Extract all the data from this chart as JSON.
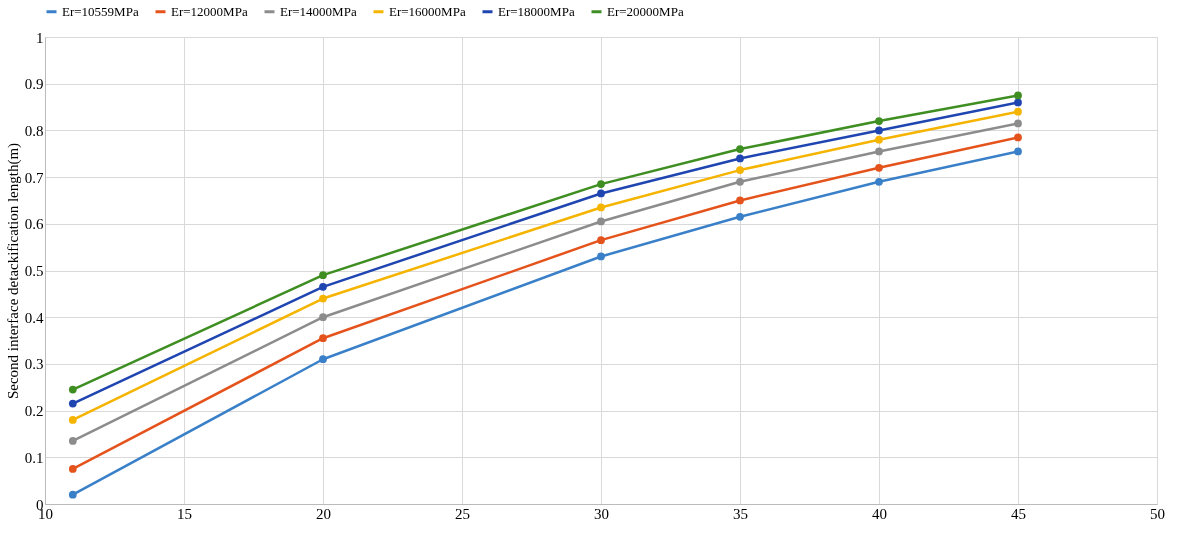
{
  "chart_data": {
    "type": "line",
    "ylabel": "Second interface detackification length(m)",
    "x": [
      11,
      20,
      30,
      35,
      40,
      45
    ],
    "xlim": [
      10,
      50
    ],
    "xticks": [
      10,
      15,
      20,
      25,
      30,
      35,
      40,
      45,
      50
    ],
    "ylim": [
      0,
      1
    ],
    "yticks": [
      0,
      0.1,
      0.2,
      0.3,
      0.4,
      0.5,
      0.6,
      0.7,
      0.8,
      0.9,
      1
    ],
    "grid": true,
    "legend": "top",
    "marker": "circle",
    "line_style": "solid",
    "series": [
      {
        "name": "Er=10559MPa",
        "color": "#3a80c8",
        "values": [
          0.02,
          0.31,
          0.53,
          0.615,
          0.69,
          0.755
        ]
      },
      {
        "name": "Er=12000MPa",
        "color": "#e5531c",
        "values": [
          0.075,
          0.355,
          0.565,
          0.65,
          0.72,
          0.785
        ]
      },
      {
        "name": "Er=14000MPa",
        "color": "#8c8c8c",
        "values": [
          0.135,
          0.4,
          0.605,
          0.69,
          0.755,
          0.815
        ]
      },
      {
        "name": "Er=16000MPa",
        "color": "#f5b400",
        "values": [
          0.18,
          0.44,
          0.635,
          0.715,
          0.78,
          0.84
        ]
      },
      {
        "name": "Er=18000MPa",
        "color": "#1f45b0",
        "values": [
          0.215,
          0.465,
          0.665,
          0.74,
          0.8,
          0.86
        ]
      },
      {
        "name": "Er=20000MPa",
        "color": "#3e8e22",
        "values": [
          0.245,
          0.49,
          0.685,
          0.76,
          0.82,
          0.875
        ]
      }
    ]
  }
}
